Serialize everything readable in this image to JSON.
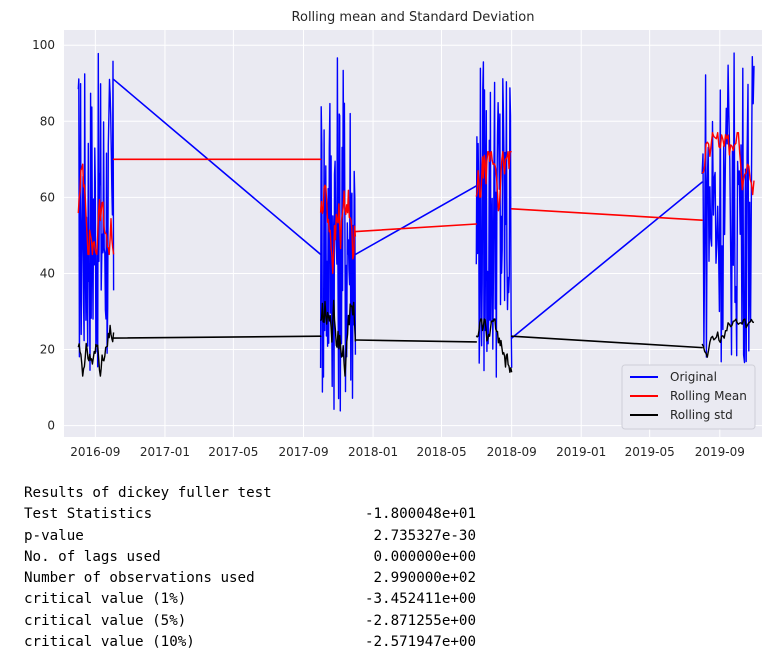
{
  "chart_data": {
    "type": "line",
    "title": "Rolling mean and Standard Deviation",
    "xlabel": "",
    "ylabel": "",
    "x_ticks": [
      "2016-09",
      "2017-01",
      "2017-05",
      "2017-09",
      "2018-01",
      "2018-05",
      "2018-09",
      "2019-01",
      "2019-05",
      "2019-09"
    ],
    "y_ticks": [
      0,
      20,
      40,
      60,
      80,
      100
    ],
    "xlim": [
      "2016-07-08",
      "2019-11-14"
    ],
    "ylim": [
      -3,
      104
    ],
    "grid": true,
    "legend_position": "lower right",
    "clusters": [
      {
        "start": "2016-08-02",
        "end": "2016-10-03"
      },
      {
        "start": "2017-10-01",
        "end": "2017-12-01"
      },
      {
        "start": "2018-07-01",
        "end": "2018-09-01"
      },
      {
        "start": "2019-08-01",
        "end": "2019-10-31"
      }
    ],
    "series": [
      {
        "name": "Original",
        "color": "#0000ff",
        "bridges": [
          {
            "from": [
              "2016-10-03",
              91
            ],
            "to": [
              "2017-10-01",
              45
            ]
          },
          {
            "from": [
              "2017-12-01",
              45
            ],
            "to": [
              "2018-07-01",
              63
            ]
          },
          {
            "from": [
              "2018-09-01",
              23
            ],
            "to": [
              "2019-08-01",
              64
            ]
          }
        ],
        "cluster_ranges": [
          [
            12,
            98
          ],
          [
            3,
            100
          ],
          [
            11,
            98
          ],
          [
            16,
            100
          ]
        ]
      },
      {
        "name": "Rolling Mean",
        "color": "#ff0000",
        "bridges": [
          {
            "from": [
              "2016-10-03",
              70
            ],
            "to": [
              "2017-10-01",
              70
            ]
          },
          {
            "from": [
              "2017-12-01",
              51
            ],
            "to": [
              "2018-07-01",
              53
            ]
          },
          {
            "from": [
              "2018-09-01",
              57
            ],
            "to": [
              "2019-08-01",
              54
            ]
          }
        ],
        "cluster_ranges": [
          [
            45,
            76
          ],
          [
            40,
            75
          ],
          [
            45,
            72
          ],
          [
            45,
            77
          ]
        ]
      },
      {
        "name": "Rolling std",
        "color": "#000000",
        "bridges": [
          {
            "from": [
              "2016-10-03",
              23
            ],
            "to": [
              "2017-10-01",
              23.5
            ]
          },
          {
            "from": [
              "2017-12-01",
              22.5
            ],
            "to": [
              "2018-07-01",
              22
            ]
          },
          {
            "from": [
              "2018-09-01",
              23.5
            ],
            "to": [
              "2019-08-01",
              20.5
            ]
          }
        ],
        "cluster_ranges": [
          [
            13,
            29
          ],
          [
            13,
            38
          ],
          [
            14,
            28
          ],
          [
            18,
            28
          ]
        ]
      }
    ]
  },
  "results": {
    "heading": "Results of dickey fuller test",
    "rows": [
      {
        "label": "Test Statistics",
        "value": "-1.800048e+01"
      },
      {
        "label": "p-value",
        "value": "2.735327e-30"
      },
      {
        "label": "No. of lags used",
        "value": "0.000000e+00"
      },
      {
        "label": "Number of observations used",
        "value": "2.990000e+02"
      },
      {
        "label": "critical value (1%)",
        "value": "-3.452411e+00"
      },
      {
        "label": "critical value (5%)",
        "value": "-2.871255e+00"
      },
      {
        "label": "critical value (10%)",
        "value": "-2.571947e+00"
      }
    ]
  }
}
